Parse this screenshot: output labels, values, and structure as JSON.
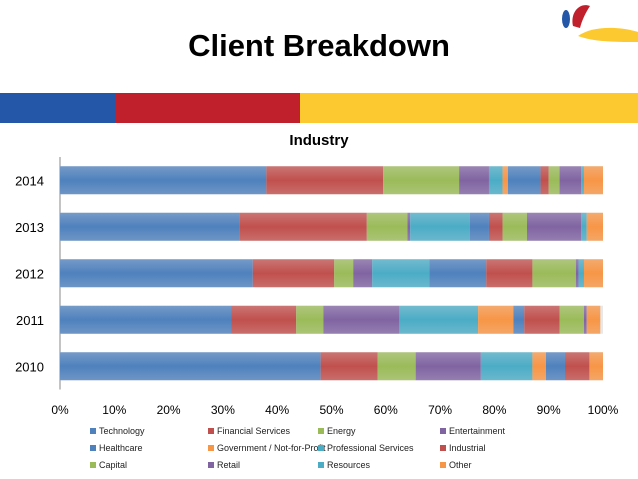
{
  "slide": {
    "title": "Client Breakdown"
  },
  "brand_colors": {
    "blue": "#2457a8",
    "red": "#c0202b",
    "yellow": "#fdc930"
  },
  "chart_data": {
    "type": "bar",
    "orientation": "horizontal",
    "stacked": "percent",
    "title": "Industry",
    "xlabel": "",
    "ylabel": "",
    "xlim": [
      0,
      100
    ],
    "x_ticks": [
      "0%",
      "10%",
      "20%",
      "30%",
      "40%",
      "50%",
      "60%",
      "70%",
      "80%",
      "90%",
      "100%"
    ],
    "grid": false,
    "legend_position": "bottom",
    "categories": [
      "2014",
      "2013",
      "2012",
      "2011",
      "2010"
    ],
    "series": [
      {
        "name": "Technology",
        "color": "#4f81bd",
        "values": [
          38,
          33,
          35.5,
          31.5,
          48
        ]
      },
      {
        "name": "Financial Services",
        "color": "#c0504d",
        "values": [
          21.5,
          23.5,
          15,
          12,
          10.5
        ]
      },
      {
        "name": "Energy",
        "color": "#9bbb59",
        "values": [
          14,
          7.5,
          3.5,
          5,
          7
        ]
      },
      {
        "name": "Entertainment",
        "color": "#8064a2",
        "values": [
          5.5,
          0.5,
          3.5,
          14,
          12
        ]
      },
      {
        "name": "Professional Services",
        "color": "#4bacc6",
        "values": [
          2.5,
          11,
          10.5,
          14.5,
          9.5
        ]
      },
      {
        "name": "Government / Not-for-Profit",
        "color": "#f79646",
        "values": [
          1,
          0,
          0,
          6.5,
          2.5
        ]
      },
      {
        "name": "Healthcare",
        "color": "#4f81bd",
        "values": [
          6,
          3.5,
          10.5,
          2,
          3.5
        ]
      },
      {
        "name": "Industrial",
        "color": "#c0504d",
        "values": [
          1.5,
          2.5,
          8.5,
          6.5,
          4.5
        ]
      },
      {
        "name": "Capital",
        "color": "#9bbb59",
        "values": [
          2,
          4.5,
          8,
          4.5,
          0
        ]
      },
      {
        "name": "Retail",
        "color": "#8064a2",
        "values": [
          4,
          10,
          0.5,
          0.5,
          0
        ]
      },
      {
        "name": "Resources",
        "color": "#4bacc6",
        "values": [
          0.5,
          1,
          1,
          0,
          0
        ]
      },
      {
        "name": "Other",
        "color": "#f79646",
        "values": [
          3.5,
          3,
          3.5,
          2.5,
          2.5
        ]
      }
    ]
  }
}
